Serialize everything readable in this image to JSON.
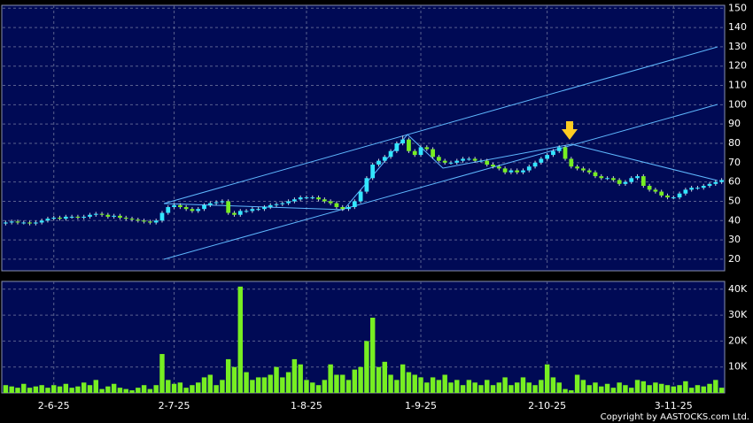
{
  "chart_data": {
    "type": "candlestick",
    "categories": [
      null,
      null,
      null,
      null,
      null,
      null,
      null,
      null,
      "2-6-25",
      null,
      null,
      null,
      null,
      null,
      null,
      null,
      null,
      null,
      null,
      null,
      null,
      null,
      null,
      null,
      null,
      null,
      null,
      null,
      "2-7-25",
      null,
      null,
      null,
      null,
      null,
      null,
      null,
      null,
      null,
      null,
      null,
      null,
      null,
      null,
      null,
      null,
      null,
      null,
      null,
      null,
      null,
      "1-8-25",
      null,
      null,
      null,
      null,
      null,
      null,
      null,
      null,
      null,
      null,
      null,
      null,
      null,
      null,
      null,
      null,
      null,
      null,
      "1-9-25",
      null,
      null,
      null,
      null,
      null,
      null,
      null,
      null,
      null,
      null,
      null,
      null,
      null,
      null,
      null,
      null,
      null,
      null,
      null,
      null,
      "2-10-25",
      null,
      null,
      null,
      null,
      null,
      null,
      null,
      null,
      null,
      null,
      null,
      null,
      null,
      null,
      null,
      null,
      null,
      null,
      null,
      null,
      "3-11-25",
      null,
      null,
      null,
      null,
      null,
      null,
      null,
      null
    ],
    "open": [
      38.5,
      39,
      39.5,
      39,
      39,
      38.5,
      39,
      40,
      41,
      41.5,
      41,
      42,
      42,
      41.5,
      42,
      43,
      43.5,
      43,
      42,
      42.5,
      41.5,
      41,
      40.5,
      40,
      39.5,
      39,
      40,
      44,
      47,
      48,
      47,
      46,
      45,
      46,
      48,
      49,
      49.5,
      50,
      44,
      43,
      45,
      45,
      46,
      46,
      47,
      48,
      48.5,
      49,
      50,
      51,
      52,
      52,
      52,
      51,
      50,
      49,
      47,
      46,
      47,
      50,
      55,
      62,
      69,
      71,
      73,
      76,
      80,
      82,
      76,
      74,
      78,
      77,
      73,
      71,
      70,
      70,
      71,
      72,
      72,
      71,
      71,
      69,
      68,
      67,
      65,
      66,
      65,
      66,
      68,
      70,
      72,
      74,
      76,
      78,
      72,
      68,
      67,
      66,
      65,
      63,
      62,
      62,
      61,
      59,
      60,
      62,
      63,
      58,
      56,
      55,
      53,
      52,
      52,
      54,
      56,
      57,
      57,
      58,
      59,
      60
    ],
    "high": [
      40,
      40.5,
      40.5,
      40,
      40,
      40,
      41,
      42,
      42.5,
      42.5,
      43,
      43,
      43,
      43,
      44,
      44.5,
      44.5,
      44,
      43.5,
      43.5,
      42.5,
      42,
      41.5,
      41,
      40.5,
      41,
      45,
      48,
      49,
      49,
      48,
      47,
      47,
      49,
      50,
      50.5,
      51,
      51,
      45,
      46,
      46,
      47,
      47,
      48,
      49,
      49.5,
      50,
      51,
      52,
      53,
      53,
      53,
      53,
      52,
      51,
      50,
      48,
      48,
      51,
      56,
      63,
      70,
      72,
      74,
      77,
      81,
      84,
      83,
      77,
      79,
      79,
      78,
      74,
      72,
      71,
      72,
      73,
      73,
      73,
      72,
      72,
      70,
      69,
      68,
      67,
      67,
      67,
      69,
      71,
      73,
      75,
      77,
      79,
      79,
      73,
      69,
      68,
      67,
      66,
      64,
      63,
      63,
      62,
      61,
      63,
      64,
      64,
      59,
      57,
      56,
      54,
      53,
      55,
      57,
      58,
      58,
      59,
      60,
      61,
      62
    ],
    "low": [
      37.5,
      38,
      38,
      38,
      37.5,
      37.5,
      38,
      39,
      40,
      40,
      40,
      41,
      40.5,
      40.5,
      41,
      42,
      42,
      41,
      41,
      40.5,
      40,
      39.5,
      39,
      38.5,
      38,
      38,
      39,
      43,
      46,
      46,
      45,
      44,
      44,
      45,
      47,
      48,
      48.5,
      43,
      42,
      42,
      44,
      44,
      45,
      45,
      46,
      47,
      47.5,
      48,
      49,
      50,
      51,
      51,
      50,
      49,
      48,
      46,
      45,
      45,
      46,
      49,
      54,
      61,
      68,
      70,
      72,
      75,
      79,
      75,
      73,
      73,
      76,
      72,
      70,
      69,
      69,
      69,
      70,
      71,
      70,
      70,
      68,
      67,
      66,
      64,
      64,
      64,
      64,
      65,
      67,
      69,
      71,
      73,
      75,
      71,
      67,
      66,
      65,
      64,
      62,
      61,
      61,
      60,
      58,
      58,
      59,
      61,
      57,
      55,
      54,
      52,
      51,
      51,
      51,
      53,
      55,
      56,
      56,
      57,
      58,
      59
    ],
    "close": [
      39,
      39.5,
      39,
      39,
      38.5,
      39,
      40,
      41,
      41.5,
      41,
      42,
      42,
      41.5,
      42,
      43,
      43.5,
      43,
      42,
      42.5,
      41.5,
      41,
      40.5,
      40,
      39.5,
      39,
      40,
      44,
      47,
      48,
      47,
      46,
      45,
      46,
      48,
      49,
      49.5,
      50,
      44,
      43,
      45,
      45,
      46,
      46,
      47,
      48,
      48.5,
      49,
      50,
      51,
      52,
      52,
      52,
      51,
      50,
      49,
      47,
      46,
      47,
      50,
      55,
      62,
      69,
      71,
      73,
      76,
      80,
      82,
      76,
      74,
      78,
      77,
      73,
      71,
      70,
      70,
      71,
      72,
      72,
      71,
      71,
      69,
      68,
      67,
      65,
      66,
      65,
      66,
      68,
      70,
      72,
      74,
      76,
      78,
      72,
      68,
      67,
      66,
      65,
      63,
      62,
      62,
      61,
      59,
      60,
      62,
      63,
      58,
      56,
      55,
      53,
      52,
      52,
      54,
      56,
      57,
      57,
      58,
      59,
      60,
      61
    ],
    "volume": [
      3000,
      2500,
      2000,
      3500,
      2000,
      2500,
      3000,
      2000,
      3000,
      2500,
      3500,
      2000,
      2500,
      4000,
      3000,
      5000,
      1500,
      2500,
      3500,
      2000,
      1500,
      1000,
      2000,
      3000,
      1500,
      3000,
      15000,
      5000,
      3500,
      4000,
      2000,
      3000,
      4000,
      6000,
      7000,
      3000,
      5000,
      13000,
      10000,
      41000,
      8000,
      5000,
      6000,
      6000,
      7000,
      10000,
      6000,
      8000,
      13000,
      11000,
      5000,
      4000,
      3000,
      5000,
      11000,
      7000,
      7000,
      5000,
      9000,
      10000,
      20000,
      29000,
      10000,
      12000,
      7000,
      5000,
      11000,
      8000,
      7000,
      6000,
      4000,
      6000,
      5000,
      7000,
      4000,
      5000,
      3000,
      5000,
      4000,
      3000,
      5000,
      3000,
      4000,
      6000,
      3000,
      4000,
      6000,
      4000,
      3000,
      5000,
      11000,
      6000,
      4000,
      1500,
      1000,
      7000,
      5000,
      3000,
      4000,
      2500,
      3500,
      2000,
      4000,
      3000,
      2000,
      5000,
      4500,
      3000,
      4000,
      3500,
      3000,
      2500,
      3000,
      4500,
      2000,
      3000,
      2500,
      3500,
      5000,
      2000
    ],
    "up_color": "#33e6ff",
    "down_color": "#77ee22",
    "wick_color": "#cfd4e0",
    "volume_color": "#77ee22",
    "ylim": [
      14,
      151.5
    ],
    "yticks": [
      20,
      30,
      40,
      50,
      60,
      70,
      80,
      90,
      100,
      110,
      120,
      130,
      140,
      150
    ],
    "volume_ylim": [
      0,
      43000
    ],
    "volume_yticks": [
      {
        "value": 10000,
        "label": "10K"
      },
      {
        "value": 20000,
        "label": "20K"
      },
      {
        "value": 30000,
        "label": "30K"
      },
      {
        "value": 40000,
        "label": "40K"
      }
    ],
    "grid": true,
    "copyright": "Copyright by AASTOCKS.com Ltd."
  }
}
